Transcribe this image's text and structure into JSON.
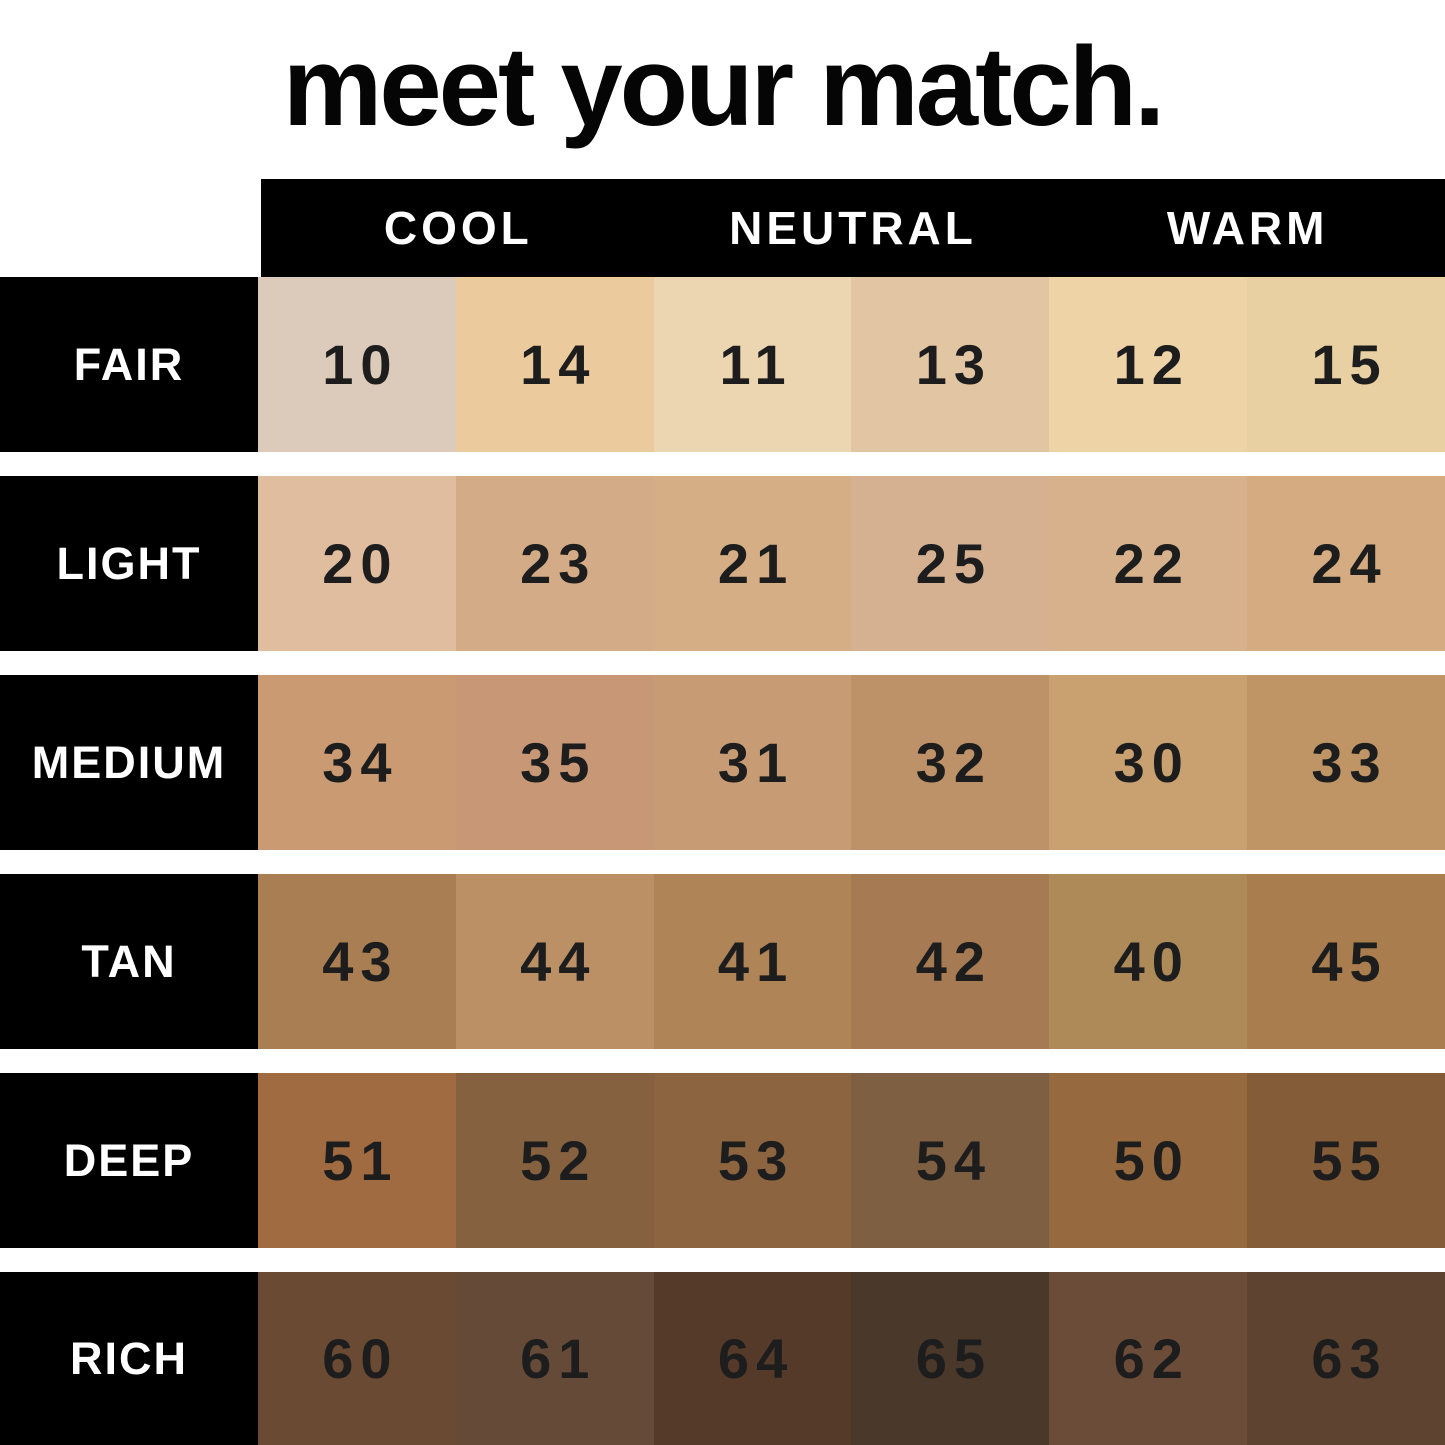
{
  "title": "meet your match.",
  "colors": {
    "background": "#ffffff",
    "bar_black": "#000000",
    "header_text": "#ffffff",
    "number_text": "#1d1d1d"
  },
  "undertones": [
    {
      "label": "COOL"
    },
    {
      "label": "NEUTRAL"
    },
    {
      "label": "WARM"
    }
  ],
  "rows": [
    {
      "label": "FAIR",
      "swatches": [
        {
          "shade": "10",
          "color": "#dccaba"
        },
        {
          "shade": "14",
          "color": "#ebcb9e"
        },
        {
          "shade": "11",
          "color": "#ecd6b2"
        },
        {
          "shade": "13",
          "color": "#e2c5a2"
        },
        {
          "shade": "12",
          "color": "#eed3a7"
        },
        {
          "shade": "15",
          "color": "#e8d0a2"
        }
      ]
    },
    {
      "label": "LIGHT",
      "swatches": [
        {
          "shade": "20",
          "color": "#e0bd9e"
        },
        {
          "shade": "23",
          "color": "#d3ab86"
        },
        {
          "shade": "21",
          "color": "#d5ae86"
        },
        {
          "shade": "25",
          "color": "#d5b091"
        },
        {
          "shade": "22",
          "color": "#d7b18b"
        },
        {
          "shade": "24",
          "color": "#d5ac81"
        }
      ]
    },
    {
      "label": "MEDIUM",
      "swatches": [
        {
          "shade": "34",
          "color": "#ca9a72"
        },
        {
          "shade": "35",
          "color": "#c89775"
        },
        {
          "shade": "31",
          "color": "#c79c75"
        },
        {
          "shade": "32",
          "color": "#bd9268"
        },
        {
          "shade": "30",
          "color": "#c9a171"
        },
        {
          "shade": "33",
          "color": "#bf9565"
        }
      ]
    },
    {
      "label": "TAN",
      "swatches": [
        {
          "shade": "43",
          "color": "#a87e52"
        },
        {
          "shade": "44",
          "color": "#bb9064"
        },
        {
          "shade": "41",
          "color": "#af8456"
        },
        {
          "shade": "42",
          "color": "#a67a52"
        },
        {
          "shade": "40",
          "color": "#ae8a59"
        },
        {
          "shade": "45",
          "color": "#a97d4e"
        }
      ]
    },
    {
      "label": "DEEP",
      "swatches": [
        {
          "shade": "51",
          "color": "#a16b41"
        },
        {
          "shade": "52",
          "color": "#85613f"
        },
        {
          "shade": "53",
          "color": "#8d6440"
        },
        {
          "shade": "54",
          "color": "#7f5f42"
        },
        {
          "shade": "50",
          "color": "#97693f"
        },
        {
          "shade": "55",
          "color": "#845c38"
        }
      ]
    },
    {
      "label": "RICH",
      "swatches": [
        {
          "shade": "60",
          "color": "#6a4a32"
        },
        {
          "shade": "61",
          "color": "#654a37"
        },
        {
          "shade": "64",
          "color": "#553a2a"
        },
        {
          "shade": "65",
          "color": "#4a382b"
        },
        {
          "shade": "62",
          "color": "#6b4c38"
        },
        {
          "shade": "63",
          "color": "#5e4330"
        }
      ]
    }
  ],
  "chart_data": {
    "type": "table",
    "title": "meet your match.",
    "column_group_labels": [
      "COOL",
      "NEUTRAL",
      "WARM"
    ],
    "column_groups_per_cell": [
      "COOL",
      "COOL",
      "NEUTRAL",
      "NEUTRAL",
      "WARM",
      "WARM"
    ],
    "row_labels": [
      "FAIR",
      "LIGHT",
      "MEDIUM",
      "TAN",
      "DEEP",
      "RICH"
    ],
    "values": [
      [
        10,
        14,
        11,
        13,
        12,
        15
      ],
      [
        20,
        23,
        21,
        25,
        22,
        24
      ],
      [
        34,
        35,
        31,
        32,
        30,
        33
      ],
      [
        43,
        44,
        41,
        42,
        40,
        45
      ],
      [
        51,
        52,
        53,
        54,
        50,
        55
      ],
      [
        60,
        61,
        64,
        65,
        62,
        63
      ]
    ],
    "cell_colors": [
      [
        "#dccaba",
        "#ebcb9e",
        "#ecd6b2",
        "#e2c5a2",
        "#eed3a7",
        "#e8d0a2"
      ],
      [
        "#e0bd9e",
        "#d3ab86",
        "#d5ae86",
        "#d5b091",
        "#d7b18b",
        "#d5ac81"
      ],
      [
        "#ca9a72",
        "#c89775",
        "#c79c75",
        "#bd9268",
        "#c9a171",
        "#bf9565"
      ],
      [
        "#a87e52",
        "#bb9064",
        "#af8456",
        "#a67a52",
        "#ae8a59",
        "#a97d4e"
      ],
      [
        "#a16b41",
        "#85613f",
        "#8d6440",
        "#7f5f42",
        "#97693f",
        "#845c38"
      ],
      [
        "#6a4a32",
        "#654a37",
        "#553a2a",
        "#4a382b",
        "#6b4c38",
        "#5e4330"
      ]
    ],
    "legend_position": "none",
    "grid": false
  }
}
